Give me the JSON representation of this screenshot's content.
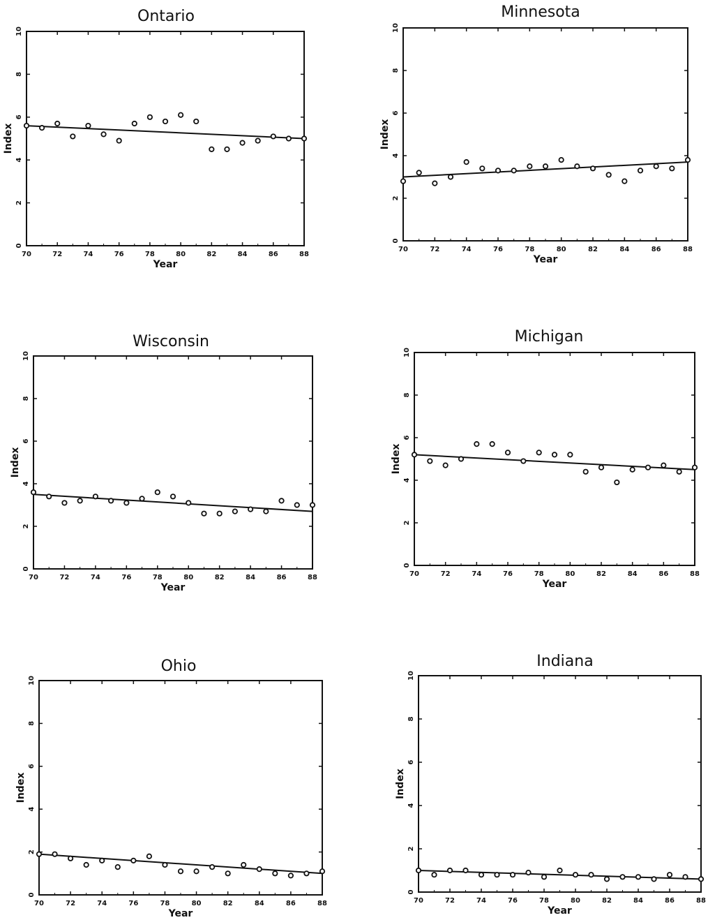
{
  "chart_data": [
    {
      "type": "scatter",
      "title": "Ontario",
      "xlabel": "Year",
      "ylabel": "Index",
      "xlim": [
        70,
        88
      ],
      "ylim": [
        0,
        10
      ],
      "xticks": [
        "70",
        "72",
        "74",
        "76",
        "78",
        "80",
        "82",
        "84",
        "86",
        "88"
      ],
      "yticks": [
        "0",
        "2",
        "4",
        "6",
        "8",
        "10"
      ],
      "x": [
        70,
        71,
        72,
        73,
        74,
        75,
        76,
        77,
        78,
        79,
        80,
        81,
        82,
        83,
        84,
        85,
        86,
        87,
        88
      ],
      "y": [
        5.6,
        5.5,
        5.7,
        5.1,
        5.6,
        5.2,
        4.9,
        5.7,
        6.0,
        5.8,
        6.1,
        5.8,
        4.5,
        4.5,
        4.8,
        4.9,
        5.1,
        5.0,
        5.0
      ],
      "trend": [
        5.6,
        5.0
      ]
    },
    {
      "type": "scatter",
      "title": "Minnesota",
      "xlabel": "Year",
      "ylabel": "Index",
      "xlim": [
        70,
        88
      ],
      "ylim": [
        0,
        10
      ],
      "xticks": [
        "70",
        "72",
        "74",
        "76",
        "78",
        "80",
        "82",
        "84",
        "86",
        "88"
      ],
      "yticks": [
        "0",
        "2",
        "4",
        "6",
        "8",
        "10"
      ],
      "x": [
        70,
        71,
        72,
        73,
        74,
        75,
        76,
        77,
        78,
        79,
        80,
        81,
        82,
        83,
        84,
        85,
        86,
        87,
        88
      ],
      "y": [
        2.8,
        3.2,
        2.7,
        3.0,
        3.7,
        3.4,
        3.3,
        3.3,
        3.5,
        3.5,
        3.8,
        3.5,
        3.4,
        3.1,
        2.8,
        3.3,
        3.5,
        3.4,
        3.8
      ],
      "trend": [
        3.0,
        3.7
      ]
    },
    {
      "type": "scatter",
      "title": "Wisconsin",
      "xlabel": "Year",
      "ylabel": "Index",
      "xlim": [
        70,
        88
      ],
      "ylim": [
        0,
        10
      ],
      "xticks": [
        "70",
        "72",
        "74",
        "76",
        "78",
        "80",
        "82",
        "84",
        "86",
        "88"
      ],
      "yticks": [
        "0",
        "2",
        "4",
        "6",
        "8",
        "10"
      ],
      "x": [
        70,
        71,
        72,
        73,
        74,
        75,
        76,
        77,
        78,
        79,
        80,
        81,
        82,
        83,
        84,
        85,
        86,
        87,
        88
      ],
      "y": [
        3.6,
        3.4,
        3.1,
        3.2,
        3.4,
        3.2,
        3.1,
        3.3,
        3.6,
        3.4,
        3.1,
        2.6,
        2.6,
        2.7,
        2.8,
        2.7,
        3.2,
        3.0,
        3.0
      ],
      "trend": [
        3.5,
        2.7
      ]
    },
    {
      "type": "scatter",
      "title": "Michigan",
      "xlabel": "Year",
      "ylabel": "Index",
      "xlim": [
        70,
        88
      ],
      "ylim": [
        0,
        10
      ],
      "xticks": [
        "70",
        "72",
        "74",
        "76",
        "78",
        "80",
        "82",
        "84",
        "86",
        "88"
      ],
      "yticks": [
        "0",
        "2",
        "4",
        "6",
        "8",
        "10"
      ],
      "x": [
        70,
        71,
        72,
        73,
        74,
        75,
        76,
        77,
        78,
        79,
        80,
        81,
        82,
        83,
        84,
        85,
        86,
        87,
        88
      ],
      "y": [
        5.2,
        4.9,
        4.7,
        5.0,
        5.7,
        5.7,
        5.3,
        4.9,
        5.3,
        5.2,
        5.2,
        4.4,
        4.6,
        3.9,
        4.5,
        4.6,
        4.7,
        4.4,
        4.6
      ],
      "trend": [
        5.2,
        4.5
      ]
    },
    {
      "type": "scatter",
      "title": "Ohio",
      "xlabel": "Year",
      "ylabel": "Index",
      "xlim": [
        70,
        88
      ],
      "ylim": [
        0,
        10
      ],
      "xticks": [
        "70",
        "72",
        "74",
        "76",
        "78",
        "80",
        "82",
        "84",
        "86",
        "88"
      ],
      "yticks": [
        "0",
        "2",
        "4",
        "6",
        "8",
        "10"
      ],
      "x": [
        70,
        71,
        72,
        73,
        74,
        75,
        76,
        77,
        78,
        79,
        80,
        81,
        82,
        83,
        84,
        85,
        86,
        87,
        88
      ],
      "y": [
        1.9,
        1.9,
        1.7,
        1.4,
        1.6,
        1.3,
        1.6,
        1.8,
        1.4,
        1.1,
        1.1,
        1.3,
        1.0,
        1.4,
        1.2,
        1.0,
        0.9,
        1.0,
        1.1
      ],
      "trend": [
        1.9,
        1.0
      ]
    },
    {
      "type": "scatter",
      "title": "Indiana",
      "xlabel": "Year",
      "ylabel": "Index",
      "xlim": [
        70,
        88
      ],
      "ylim": [
        0,
        10
      ],
      "xticks": [
        "70",
        "72",
        "74",
        "76",
        "78",
        "80",
        "82",
        "84",
        "86",
        "88"
      ],
      "yticks": [
        "0",
        "2",
        "4",
        "6",
        "8",
        "10"
      ],
      "x": [
        70,
        71,
        72,
        73,
        74,
        75,
        76,
        77,
        78,
        79,
        80,
        81,
        82,
        83,
        84,
        85,
        86,
        87,
        88
      ],
      "y": [
        1.0,
        0.8,
        1.0,
        1.0,
        0.8,
        0.8,
        0.8,
        0.9,
        0.7,
        1.0,
        0.8,
        0.8,
        0.6,
        0.7,
        0.7,
        0.6,
        0.8,
        0.7,
        0.6
      ],
      "trend": [
        1.0,
        0.6
      ]
    }
  ]
}
